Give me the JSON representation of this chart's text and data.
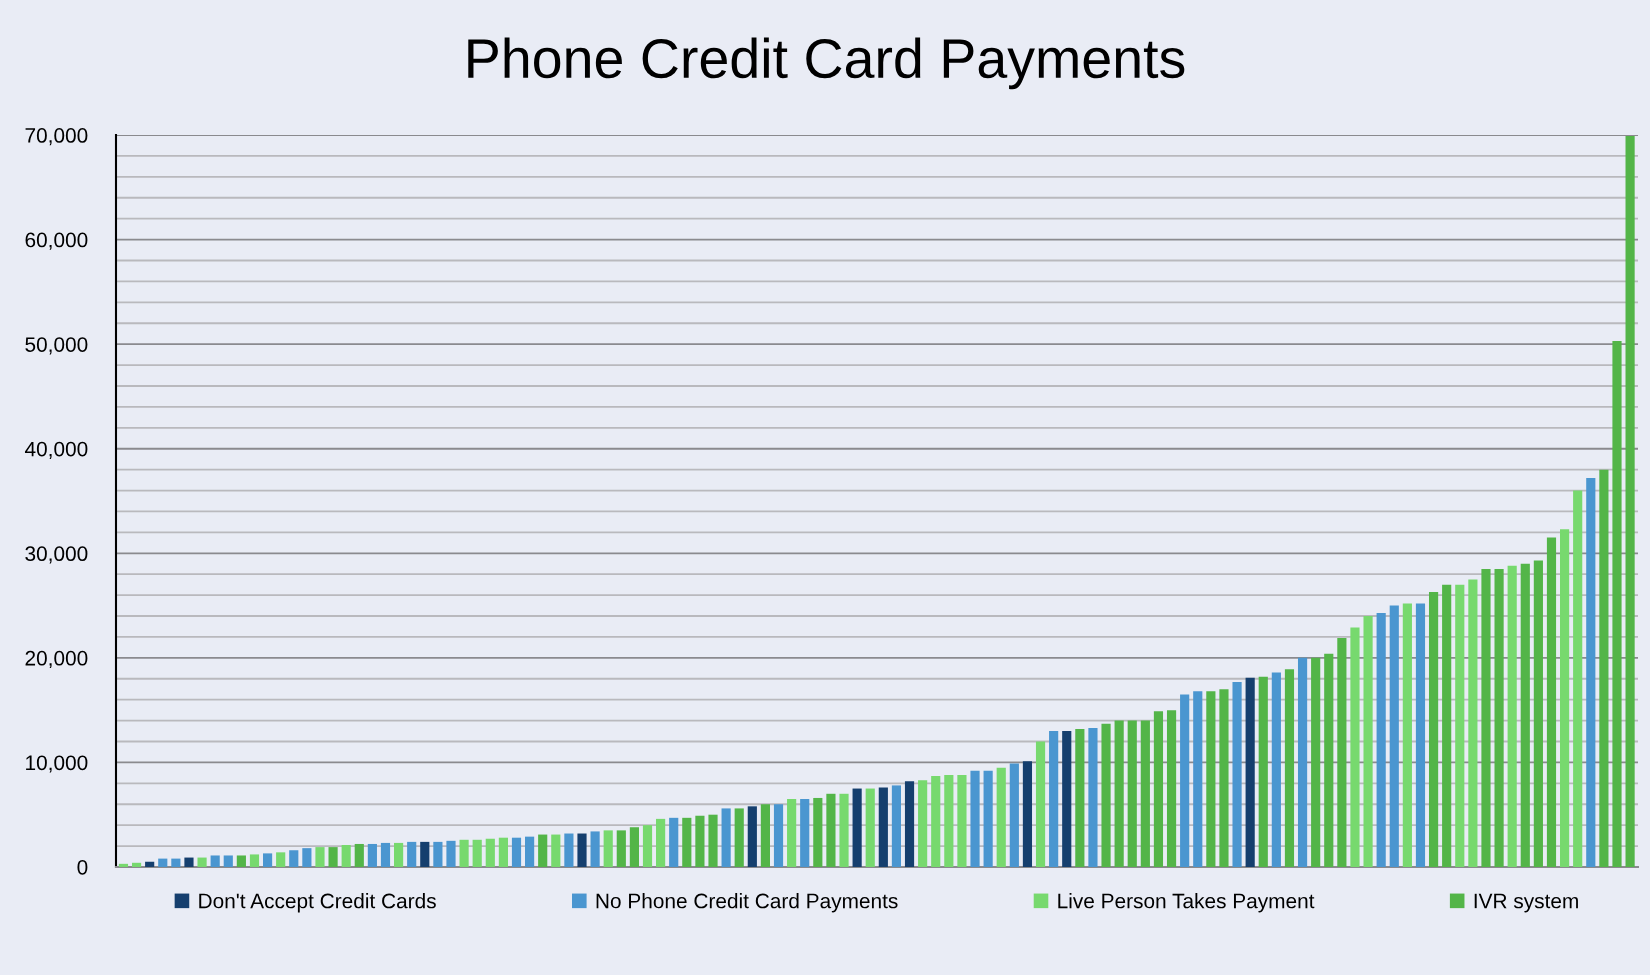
{
  "chart_data": {
    "type": "bar",
    "title": "Phone Credit Card Payments",
    "categories": [
      null,
      null,
      null,
      null,
      null,
      null,
      null,
      null,
      null,
      null,
      null,
      null,
      null,
      null,
      null,
      null,
      null,
      null,
      null,
      null,
      null,
      null,
      null,
      null,
      null,
      null,
      null,
      null,
      null,
      null,
      null,
      null,
      null,
      null,
      null,
      null,
      null,
      null,
      null,
      null,
      null,
      null,
      null,
      null,
      null,
      null,
      null,
      null,
      null,
      null,
      null,
      null,
      null,
      null,
      null,
      null,
      null,
      null,
      null,
      null,
      null,
      null,
      null,
      null,
      null,
      null,
      null,
      null,
      null,
      null,
      null,
      null,
      null,
      null,
      null,
      null,
      null,
      null,
      null,
      null,
      null,
      null,
      null,
      null,
      null,
      null,
      null,
      null,
      null,
      null,
      null,
      null,
      null,
      null,
      null,
      null,
      null,
      null,
      null,
      null,
      null,
      null,
      null,
      null,
      null,
      null,
      null,
      null,
      null,
      null,
      null,
      null,
      null,
      null,
      null,
      null
    ],
    "series": [
      {
        "name": "Don't Accept Credit Cards",
        "color": "#153f6e",
        "values": [
          null,
          null,
          500,
          null,
          null,
          900,
          null,
          null,
          null,
          null,
          null,
          null,
          null,
          null,
          null,
          null,
          null,
          null,
          null,
          null,
          null,
          null,
          null,
          2400,
          null,
          null,
          null,
          null,
          null,
          null,
          null,
          null,
          null,
          null,
          null,
          3200,
          null,
          null,
          null,
          null,
          null,
          null,
          null,
          null,
          null,
          null,
          null,
          null,
          5800,
          null,
          null,
          null,
          null,
          null,
          null,
          null,
          7500,
          null,
          7600,
          null,
          8200,
          null,
          null,
          null,
          null,
          null,
          null,
          null,
          null,
          10100,
          null,
          null,
          13000,
          null,
          null,
          null,
          null,
          null,
          null,
          null,
          null,
          null,
          null,
          null,
          null,
          null,
          18100,
          null,
          null,
          null,
          null,
          null,
          null,
          null,
          null,
          null,
          null,
          null,
          null,
          null,
          null,
          null,
          null,
          null,
          null,
          null,
          null,
          null,
          null,
          null,
          null,
          null,
          null,
          null,
          null,
          null
        ]
      },
      {
        "name": "No Phone Credit Card Payments",
        "color": "#4a96d0",
        "values": [
          null,
          null,
          null,
          800,
          800,
          null,
          null,
          1100,
          1100,
          null,
          null,
          1300,
          null,
          1600,
          1800,
          null,
          null,
          null,
          null,
          2200,
          2300,
          null,
          2400,
          null,
          2400,
          2500,
          null,
          null,
          null,
          null,
          2800,
          2900,
          null,
          null,
          3200,
          null,
          3400,
          null,
          null,
          null,
          null,
          null,
          4700,
          null,
          null,
          null,
          5600,
          null,
          null,
          null,
          6000,
          null,
          6500,
          null,
          null,
          null,
          null,
          null,
          null,
          7800,
          null,
          null,
          null,
          null,
          null,
          9200,
          9200,
          null,
          9900,
          null,
          null,
          13000,
          null,
          null,
          13300,
          null,
          null,
          null,
          null,
          null,
          null,
          16500,
          16800,
          null,
          null,
          17700,
          null,
          null,
          18600,
          null,
          20000,
          null,
          null,
          null,
          null,
          null,
          24300,
          25000,
          null,
          25200,
          null,
          null,
          null,
          null,
          null,
          null,
          null,
          null,
          null,
          null,
          null,
          null,
          37200,
          null,
          null,
          null
        ]
      },
      {
        "name": "Live Person Takes Payment",
        "color": "#77d96e",
        "values": [
          300,
          400,
          null,
          null,
          null,
          null,
          900,
          null,
          null,
          null,
          1200,
          null,
          1400,
          null,
          null,
          1900,
          null,
          2100,
          null,
          null,
          null,
          2300,
          null,
          null,
          null,
          null,
          2600,
          2600,
          2700,
          2800,
          null,
          null,
          null,
          3100,
          null,
          null,
          null,
          3500,
          null,
          null,
          4000,
          4600,
          null,
          null,
          null,
          null,
          null,
          null,
          null,
          null,
          null,
          6500,
          null,
          null,
          null,
          7000,
          null,
          7500,
          null,
          null,
          null,
          8300,
          8700,
          8800,
          8800,
          null,
          null,
          9500,
          null,
          null,
          12000,
          null,
          null,
          null,
          null,
          null,
          null,
          null,
          null,
          null,
          null,
          null,
          null,
          null,
          null,
          null,
          null,
          null,
          null,
          null,
          null,
          null,
          null,
          null,
          22900,
          24000,
          null,
          null,
          25200,
          null,
          null,
          null,
          27000,
          27500,
          null,
          null,
          28800,
          null,
          null,
          null,
          32300,
          36000,
          null,
          null,
          null,
          null
        ]
      },
      {
        "name": "IVR system",
        "color": "#53b548",
        "values": [
          null,
          null,
          null,
          null,
          null,
          null,
          null,
          null,
          null,
          1100,
          null,
          null,
          null,
          null,
          null,
          null,
          1900,
          null,
          2200,
          null,
          null,
          null,
          null,
          null,
          null,
          null,
          null,
          null,
          null,
          null,
          null,
          null,
          3100,
          null,
          null,
          null,
          null,
          null,
          3500,
          3800,
          null,
          null,
          null,
          4700,
          4900,
          5000,
          null,
          5600,
          null,
          6000,
          null,
          null,
          null,
          6600,
          7000,
          null,
          null,
          null,
          null,
          null,
          null,
          null,
          null,
          null,
          null,
          null,
          null,
          null,
          null,
          null,
          null,
          null,
          null,
          13200,
          null,
          13700,
          14000,
          14000,
          14000,
          14900,
          15000,
          null,
          null,
          16800,
          17000,
          null,
          null,
          18200,
          null,
          18900,
          null,
          20000,
          20400,
          21900,
          null,
          null,
          null,
          null,
          null,
          null,
          26300,
          27000,
          null,
          null,
          28500,
          28500,
          null,
          29000,
          29300,
          31500,
          null,
          null,
          null,
          38000,
          50300,
          69900
        ]
      }
    ],
    "ylim": [
      0,
      70000
    ],
    "yticks": [
      {
        "value": 0,
        "label": "0"
      },
      {
        "value": 2000,
        "label": null
      },
      {
        "value": 4000,
        "label": null
      },
      {
        "value": 6000,
        "label": null
      },
      {
        "value": 8000,
        "label": null
      },
      {
        "value": 10000,
        "label": "10,000"
      },
      {
        "value": 12000,
        "label": null
      },
      {
        "value": 14000,
        "label": null
      },
      {
        "value": 16000,
        "label": null
      },
      {
        "value": 18000,
        "label": null
      },
      {
        "value": 20000,
        "label": "20,000"
      },
      {
        "value": 22000,
        "label": null
      },
      {
        "value": 24000,
        "label": null
      },
      {
        "value": 26000,
        "label": null
      },
      {
        "value": 28000,
        "label": null
      },
      {
        "value": 30000,
        "label": "30,000"
      },
      {
        "value": 32000,
        "label": null
      },
      {
        "value": 34000,
        "label": null
      },
      {
        "value": 36000,
        "label": null
      },
      {
        "value": 38000,
        "label": null
      },
      {
        "value": 40000,
        "label": "40,000"
      },
      {
        "value": 42000,
        "label": null
      },
      {
        "value": 44000,
        "label": null
      },
      {
        "value": 46000,
        "label": null
      },
      {
        "value": 48000,
        "label": null
      },
      {
        "value": 50000,
        "label": "50,000"
      },
      {
        "value": 52000,
        "label": null
      },
      {
        "value": 54000,
        "label": null
      },
      {
        "value": 56000,
        "label": null
      },
      {
        "value": 58000,
        "label": null
      },
      {
        "value": 60000,
        "label": "60,000"
      },
      {
        "value": 62000,
        "label": null
      },
      {
        "value": 64000,
        "label": null
      },
      {
        "value": 66000,
        "label": null
      },
      {
        "value": 68000,
        "label": null
      },
      {
        "value": 70000,
        "label": "70,000"
      }
    ],
    "grid": "y",
    "legend": "bottom"
  }
}
